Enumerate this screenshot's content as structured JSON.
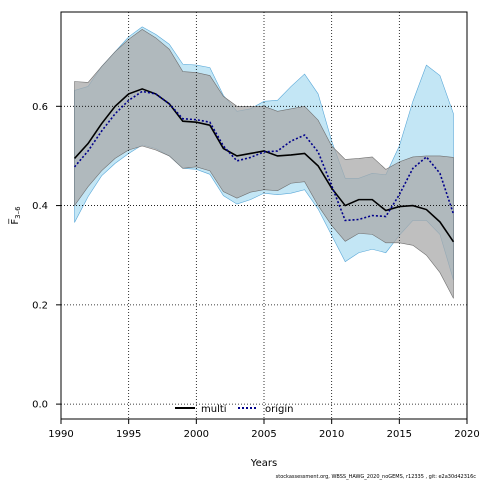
{
  "chart_data": {
    "type": "line",
    "xlabel": "Years",
    "ylabel": "F̅",
    "ylabel_sub": "3–6",
    "xlim": [
      1990,
      2020
    ],
    "ylim": [
      -0.03,
      0.79
    ],
    "xticks": [
      1990,
      1995,
      2000,
      2005,
      2010,
      2015,
      2020
    ],
    "yticks": [
      0.0,
      0.2,
      0.4,
      0.6
    ],
    "ytick_labels": [
      "0.0",
      "0.2",
      "0.4",
      "0.6"
    ],
    "grid": true,
    "legend_position": "bottom-center",
    "x": [
      1991,
      1992,
      1993,
      1994,
      1995,
      1996,
      1997,
      1998,
      1999,
      2000,
      2001,
      2002,
      2003,
      2004,
      2005,
      2006,
      2007,
      2008,
      2009,
      2010,
      2011,
      2012,
      2013,
      2014,
      2015,
      2016,
      2017,
      2018,
      2019
    ],
    "series": [
      {
        "name": "multi",
        "color": "#000000",
        "band_color": "#a9a9a9",
        "style": "solid",
        "values": [
          0.495,
          0.525,
          0.565,
          0.6,
          0.625,
          0.635,
          0.625,
          0.605,
          0.57,
          0.568,
          0.562,
          0.515,
          0.5,
          0.505,
          0.51,
          0.5,
          0.502,
          0.505,
          0.48,
          0.435,
          0.4,
          0.412,
          0.412,
          0.39,
          0.398,
          0.4,
          0.392,
          0.367,
          0.327
        ],
        "upper": [
          0.65,
          0.648,
          0.68,
          0.71,
          0.735,
          0.755,
          0.738,
          0.715,
          0.67,
          0.668,
          0.662,
          0.62,
          0.6,
          0.6,
          0.6,
          0.59,
          0.595,
          0.6,
          0.572,
          0.52,
          0.493,
          0.495,
          0.498,
          0.473,
          0.488,
          0.498,
          0.5,
          0.5,
          0.497
        ],
        "lower": [
          0.4,
          0.438,
          0.47,
          0.495,
          0.512,
          0.52,
          0.512,
          0.5,
          0.475,
          0.478,
          0.47,
          0.428,
          0.415,
          0.427,
          0.432,
          0.43,
          0.445,
          0.448,
          0.4,
          0.36,
          0.328,
          0.344,
          0.342,
          0.325,
          0.325,
          0.32,
          0.3,
          0.265,
          0.213
        ]
      },
      {
        "name": "origin",
        "color": "#00008b",
        "band_color": "#87ceeb",
        "style": "dotted",
        "values": [
          0.478,
          0.51,
          0.55,
          0.585,
          0.612,
          0.63,
          0.625,
          0.605,
          0.575,
          0.573,
          0.568,
          0.52,
          0.49,
          0.497,
          0.508,
          0.51,
          0.53,
          0.542,
          0.508,
          0.44,
          0.37,
          0.372,
          0.38,
          0.378,
          0.422,
          0.475,
          0.498,
          0.465,
          0.383
        ],
        "upper": [
          0.632,
          0.64,
          0.68,
          0.71,
          0.74,
          0.76,
          0.745,
          0.725,
          0.685,
          0.683,
          0.678,
          0.622,
          0.59,
          0.595,
          0.61,
          0.612,
          0.64,
          0.665,
          0.625,
          0.53,
          0.455,
          0.455,
          0.465,
          0.462,
          0.52,
          0.61,
          0.683,
          0.662,
          0.585
        ],
        "lower": [
          0.366,
          0.418,
          0.46,
          0.485,
          0.505,
          0.522,
          0.515,
          0.5,
          0.475,
          0.473,
          0.463,
          0.42,
          0.403,
          0.412,
          0.425,
          0.422,
          0.425,
          0.432,
          0.393,
          0.34,
          0.287,
          0.305,
          0.312,
          0.305,
          0.34,
          0.37,
          0.37,
          0.342,
          0.25
        ]
      }
    ],
    "footer": "stockassessment.org,  WBSS_HAWG_2020_noGEMS,  r12335 ,  git:  e2a30d42316c"
  }
}
